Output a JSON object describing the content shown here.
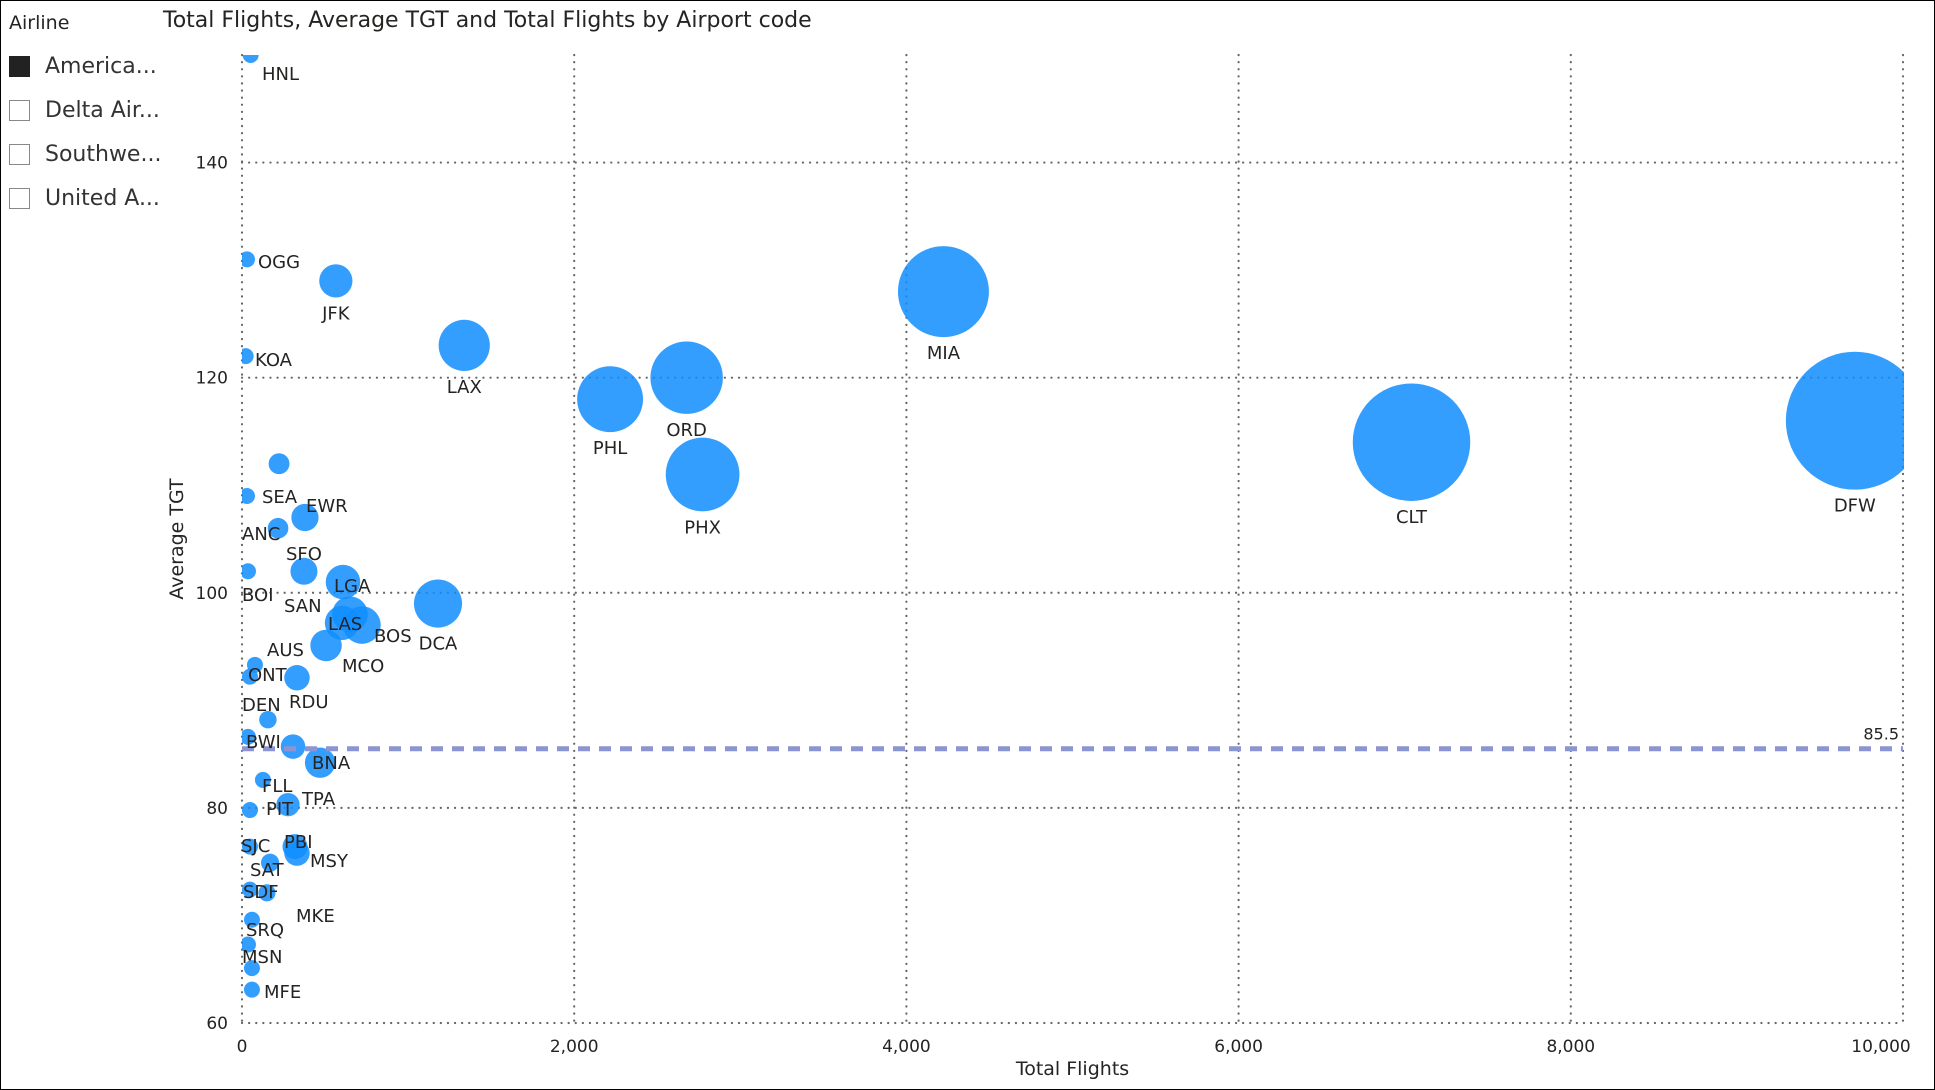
{
  "legend": {
    "title": "Airline",
    "items": [
      {
        "label": "America...",
        "checked": true
      },
      {
        "label": "Delta Air...",
        "checked": false
      },
      {
        "label": "Southwe...",
        "checked": false
      },
      {
        "label": "United A...",
        "checked": false
      }
    ]
  },
  "chart_data": {
    "type": "scatter",
    "title": "Total Flights, Average TGT and Total Flights by Airport code",
    "xlabel": "Total Flights",
    "ylabel": "Average TGT",
    "xlim": [
      0,
      10000
    ],
    "ylim": [
      60,
      150
    ],
    "xticks": [
      {
        "v": 0,
        "label": "0"
      },
      {
        "v": 2000,
        "label": "2,000"
      },
      {
        "v": 4000,
        "label": "4,000"
      },
      {
        "v": 6000,
        "label": "6,000"
      },
      {
        "v": 8000,
        "label": "8,000"
      },
      {
        "v": 10000,
        "label": "10,000"
      }
    ],
    "yticks": [
      {
        "v": 60,
        "label": "60"
      },
      {
        "v": 80,
        "label": "80"
      },
      {
        "v": 100,
        "label": "100"
      },
      {
        "v": 120,
        "label": "120"
      },
      {
        "v": 140,
        "label": "140"
      }
    ],
    "size_field": "Total Flights",
    "bubble_color": "#118DFF",
    "reference_line": {
      "value": 85.5,
      "label": "85.5",
      "color": "#8C94D4"
    },
    "grid": true,
    "points": [
      {
        "code": "HNL",
        "x": 52,
        "y": 150
      },
      {
        "code": "OGG",
        "x": 30,
        "y": 131
      },
      {
        "code": "JFK",
        "x": 565,
        "y": 129
      },
      {
        "code": "KOA",
        "x": 22,
        "y": 122
      },
      {
        "code": "LAX",
        "x": 1338,
        "y": 123
      },
      {
        "code": "PHL",
        "x": 2216,
        "y": 118
      },
      {
        "code": "ORD",
        "x": 2677,
        "y": 120
      },
      {
        "code": "PHX",
        "x": 2773,
        "y": 111
      },
      {
        "code": "MIA",
        "x": 4223,
        "y": 128
      },
      {
        "code": "CLT",
        "x": 7041,
        "y": 114
      },
      {
        "code": "DFW",
        "x": 9710,
        "y": 116
      },
      {
        "code": "",
        "x": 223,
        "y": 112
      },
      {
        "code": "SEA",
        "x": 30,
        "y": 109
      },
      {
        "code": "ANC",
        "x": 217,
        "y": 106
      },
      {
        "code": "EWR",
        "x": 379,
        "y": 107
      },
      {
        "code": "SFO",
        "x": 373,
        "y": 102
      },
      {
        "code": "BOI",
        "x": 36,
        "y": 102
      },
      {
        "code": "LGA",
        "x": 608,
        "y": 101
      },
      {
        "code": "DCA",
        "x": 1180,
        "y": 99
      },
      {
        "code": "SAN",
        "x": 650,
        "y": 98
      },
      {
        "code": "LAS",
        "x": 602,
        "y": 97.2
      },
      {
        "code": "BOS",
        "x": 722,
        "y": 97
      },
      {
        "code": "MCO",
        "x": 506,
        "y": 95.1
      },
      {
        "code": "AUS",
        "x": 78,
        "y": 93.3
      },
      {
        "code": "ONT",
        "x": 48,
        "y": 92.2
      },
      {
        "code": "RDU",
        "x": 331,
        "y": 92.1
      },
      {
        "code": "DEN",
        "x": 156,
        "y": 88.2
      },
      {
        "code": "BWI",
        "x": 36,
        "y": 86.6
      },
      {
        "code": "",
        "x": 307,
        "y": 85.7
      },
      {
        "code": "BNA",
        "x": 470,
        "y": 84.2
      },
      {
        "code": "FLL",
        "x": 126,
        "y": 82.6
      },
      {
        "code": "TPA",
        "x": 277,
        "y": 80.3
      },
      {
        "code": "PIT",
        "x": 48,
        "y": 79.8
      },
      {
        "code": "PBI",
        "x": 319,
        "y": 76.4
      },
      {
        "code": "MSY",
        "x": 331,
        "y": 75.8
      },
      {
        "code": "SJC",
        "x": 48,
        "y": 76.4
      },
      {
        "code": "SAT",
        "x": 169,
        "y": 74.9
      },
      {
        "code": "SDF",
        "x": 48,
        "y": 72.4
      },
      {
        "code": "MKE",
        "x": 150,
        "y": 72.1
      },
      {
        "code": "SRQ",
        "x": 60,
        "y": 69.6
      },
      {
        "code": "MSN",
        "x": 36,
        "y": 67.3
      },
      {
        "code": "",
        "x": 60,
        "y": 65.1
      },
      {
        "code": "MFE",
        "x": 60,
        "y": 63.1
      }
    ]
  }
}
